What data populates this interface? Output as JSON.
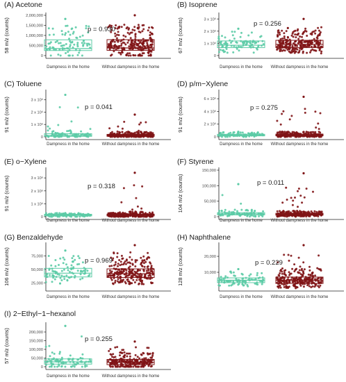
{
  "colors": {
    "dampness": "#5ccba6",
    "without": "#7f1416",
    "axis": "#222222"
  },
  "chart_data": [
    {
      "type": "box",
      "title": "(A) Acetone",
      "ylabel": "58 m/z (counts)",
      "categories": [
        "Dampness in the home",
        "Without dampness in the home"
      ],
      "yticks": [
        "0",
        "500,000",
        "1,000,000",
        "1,500,000",
        "2,000,000"
      ],
      "ylim": [
        0,
        2000000
      ],
      "p_value": "p = 0.930",
      "boxes": [
        {
          "q1": 250000,
          "median": 350000,
          "q3": 780000
        },
        {
          "q1": 260000,
          "median": 380000,
          "q3": 790000
        }
      ],
      "ymax_points": [
        1820000,
        2000000
      ]
    },
    {
      "type": "box",
      "title": "(B) Isoprene",
      "ylabel": "67 m/z (counts)",
      "categories": [
        "Dampness in the home",
        "Without dampness in the home"
      ],
      "yticks": [
        "0",
        "1 x 10⁶",
        "2 x 10⁶",
        "3 x 10⁶"
      ],
      "ylim": [
        0,
        3300000
      ],
      "p_value": "p = 0.256",
      "boxes": [
        {
          "q1": 650000,
          "median": 850000,
          "q3": 1200000
        },
        {
          "q1": 650000,
          "median": 920000,
          "q3": 1250000
        }
      ],
      "ymax_points": [
        2200000,
        3000000
      ]
    },
    {
      "type": "box",
      "title": "(C) Toluene",
      "ylabel": "91 m/z (counts)",
      "categories": [
        "Dampness in the home",
        "Without dampness in the home"
      ],
      "yticks": [
        "0",
        "1 x 10⁶",
        "2 x 10⁶",
        "3 x 10⁶"
      ],
      "ylim": [
        0,
        3600000
      ],
      "p_value": "p = 0.041",
      "boxes": [
        {
          "q1": 40000,
          "median": 110000,
          "q3": 250000
        },
        {
          "q1": 40000,
          "median": 100000,
          "q3": 200000
        }
      ],
      "ymax_points": [
        3400000,
        1800000
      ]
    },
    {
      "type": "box",
      "title": "(D) p/m−Xylene",
      "ylabel": "91 m/z (counts)",
      "categories": [
        "Dampness in the home",
        "Without dampness in the home"
      ],
      "yticks": [
        "0",
        "2 x 10⁶",
        "4 x 10⁶",
        "6 x 10⁶"
      ],
      "ylim": [
        0,
        7000000
      ],
      "p_value": "p = 0.275",
      "boxes": [
        {
          "q1": 150000,
          "median": 250000,
          "q3": 400000
        },
        {
          "q1": 150000,
          "median": 280000,
          "q3": 430000
        }
      ],
      "ymax_points": [
        800000,
        6300000
      ]
    },
    {
      "type": "box",
      "title": "(E) o−Xylene",
      "ylabel": "91 m/z (counts)",
      "categories": [
        "Dampness in the home",
        "Without dampness in the home"
      ],
      "yticks": [
        "0",
        "1 x 10⁶",
        "2 x 10⁶",
        "3 x 10⁶"
      ],
      "ylim": [
        0,
        3600000
      ],
      "p_value": "p = 0.318",
      "boxes": [
        {
          "q1": 60000,
          "median": 130000,
          "q3": 190000
        },
        {
          "q1": 60000,
          "median": 140000,
          "q3": 200000
        }
      ],
      "ymax_points": [
        280000,
        3400000
      ]
    },
    {
      "type": "box",
      "title": "(F) Styrene",
      "ylabel": "104 m/z (counts)",
      "categories": [
        "Dampness in the home",
        "Without dampness in the home"
      ],
      "yticks": [
        "0",
        "50,000",
        "100,000",
        "150,000"
      ],
      "ylim": [
        0,
        150000
      ],
      "p_value": "p = 0.011",
      "boxes": [
        {
          "q1": 6000,
          "median": 9000,
          "q3": 13000
        },
        {
          "q1": 5000,
          "median": 8000,
          "q3": 11000
        }
      ],
      "ymax_points": [
        105000,
        140000
      ]
    },
    {
      "type": "box",
      "title": "(G) Benzaldehyde",
      "ylabel": "106 m/z (counts)",
      "categories": [
        "Dampness in the home",
        "Without dampness in the home"
      ],
      "yticks": [
        "25,000",
        "50,000",
        "75,000"
      ],
      "ylim": [
        15000,
        95000
      ],
      "p_value": "p = 0.969",
      "boxes": [
        {
          "q1": 36000,
          "median": 43000,
          "q3": 52000
        },
        {
          "q1": 35000,
          "median": 42000,
          "q3": 51000
        }
      ],
      "ymax_points": [
        85000,
        95000
      ]
    },
    {
      "type": "box",
      "title": "(H) Naphthalene",
      "ylabel": "128 m/z (counts)",
      "categories": [
        "Dampness in the home",
        "Without dampness in the home"
      ],
      "yticks": [
        "10,000",
        "20,000"
      ],
      "ylim": [
        0,
        27000
      ],
      "p_value": "p = 0.229",
      "boxes": [
        {
          "q1": 3500,
          "median": 5000,
          "q3": 6500
        },
        {
          "q1": 3000,
          "median": 5000,
          "q3": 7000
        }
      ],
      "ymax_points": [
        12000,
        27000
      ]
    },
    {
      "type": "box",
      "title": "(I) 2−Ethyl−1−hexanol",
      "ylabel": "57 m/z (counts)",
      "categories": [
        "Dampness in the home",
        "Without dampness in the home"
      ],
      "yticks": [
        "0",
        "50,000",
        "100,000",
        "150,000",
        "200,000"
      ],
      "ylim": [
        0,
        240000
      ],
      "p_value": "p = 0.255",
      "boxes": [
        {
          "q1": 15000,
          "median": 28000,
          "q3": 45000
        },
        {
          "q1": 12000,
          "median": 25000,
          "q3": 42000
        }
      ],
      "ymax_points": [
        235000,
        145000
      ]
    }
  ]
}
